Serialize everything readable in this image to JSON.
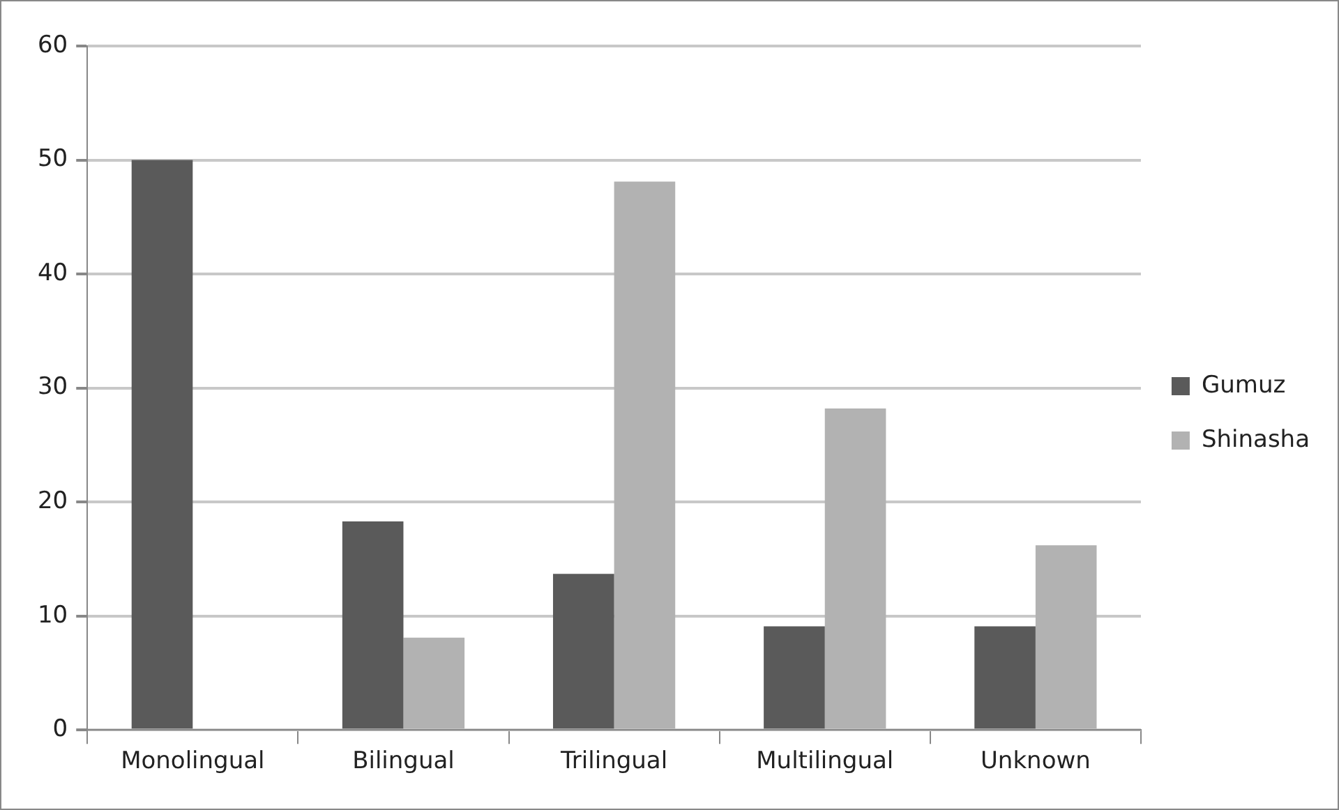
{
  "chart_data": {
    "type": "bar",
    "categories": [
      "Monolingual",
      "Bilingual",
      "Trilingual",
      "Multilingual",
      "Unknown"
    ],
    "series": [
      {
        "name": "Gumuz",
        "color": "#5a5a5a",
        "values": [
          50,
          18.3,
          13.7,
          9.1,
          9.1
        ]
      },
      {
        "name": "Shinasha",
        "color": "#b2b2b2",
        "values": [
          0,
          8.1,
          48.1,
          28.2,
          16.2
        ]
      }
    ],
    "ylim": [
      0,
      60
    ],
    "yticks": [
      0,
      10,
      20,
      30,
      40,
      50,
      60
    ],
    "grid": "y",
    "legend": "right"
  }
}
